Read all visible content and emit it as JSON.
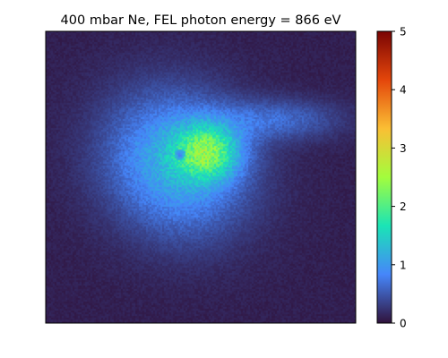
{
  "chart_data": {
    "type": "heatmap",
    "title": "400 mbar Ne, FEL photon energy = 866 eV",
    "xlabel": "",
    "ylabel": "",
    "x_ticks": [],
    "y_ticks": [],
    "colormap": "turbo",
    "colorbar": {
      "range": [
        0,
        5
      ],
      "ticks": [
        "0",
        "1",
        "2",
        "3",
        "4",
        "5"
      ]
    },
    "background_level": 0.1,
    "features": [
      {
        "name": "main-spot",
        "peak_value": 2.4,
        "center_frac": [
          0.52,
          0.41
        ]
      },
      {
        "name": "broad-halo",
        "peak_value": 1.1,
        "center_frac": [
          0.42,
          0.45
        ]
      },
      {
        "name": "right-tail",
        "peak_value": 0.5,
        "center_frac": [
          0.75,
          0.3
        ]
      },
      {
        "name": "dark-dot",
        "value": 0.7,
        "center_frac": [
          0.43,
          0.42
        ]
      }
    ],
    "grid": false,
    "legend": "none"
  },
  "colors": {
    "turbo_stops": [
      "#30123b",
      "#4686fa",
      "#1ae4b6",
      "#a3fd3d",
      "#fabf34",
      "#e4460b",
      "#7a0403"
    ]
  }
}
